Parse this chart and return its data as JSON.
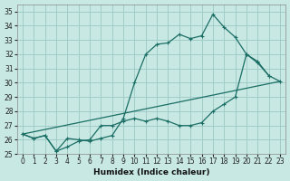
{
  "xlabel": "Humidex (Indice chaleur)",
  "xlim": [
    -0.5,
    23.5
  ],
  "ylim": [
    25,
    35.5
  ],
  "yticks": [
    25,
    26,
    27,
    28,
    29,
    30,
    31,
    32,
    33,
    34,
    35
  ],
  "xticks": [
    0,
    1,
    2,
    3,
    4,
    5,
    6,
    7,
    8,
    9,
    10,
    11,
    12,
    13,
    14,
    15,
    16,
    17,
    18,
    19,
    20,
    21,
    22,
    23
  ],
  "bg_color": "#c8e8e4",
  "grid_color": "#a0ccc8",
  "line_color": "#1a6e64",
  "line1_x": [
    0,
    1,
    2,
    3,
    4,
    5,
    6,
    7,
    8,
    9,
    10,
    11,
    12,
    13,
    14,
    15,
    16,
    17,
    18,
    19,
    20,
    21,
    22
  ],
  "line1_y": [
    26.4,
    26.1,
    26.3,
    25.2,
    26.1,
    26.0,
    25.9,
    26.1,
    26.3,
    27.5,
    30.0,
    32.0,
    32.7,
    32.8,
    33.4,
    33.1,
    33.3,
    34.8,
    33.9,
    33.2,
    32.0,
    31.4,
    30.5
  ],
  "line2_x": [
    0,
    1,
    2,
    3,
    4,
    5,
    6,
    7,
    8,
    9,
    10,
    11,
    12,
    13,
    14,
    15,
    16,
    17,
    18,
    19,
    20,
    21,
    22,
    23
  ],
  "line2_y": [
    26.4,
    26.1,
    26.3,
    25.2,
    25.5,
    25.9,
    26.0,
    27.0,
    27.0,
    27.3,
    27.5,
    27.3,
    27.5,
    27.3,
    27.0,
    27.0,
    27.2,
    28.0,
    28.5,
    29.0,
    32.0,
    31.5,
    30.5,
    30.1
  ],
  "line3_x": [
    0,
    23
  ],
  "line3_y": [
    26.4,
    30.1
  ]
}
